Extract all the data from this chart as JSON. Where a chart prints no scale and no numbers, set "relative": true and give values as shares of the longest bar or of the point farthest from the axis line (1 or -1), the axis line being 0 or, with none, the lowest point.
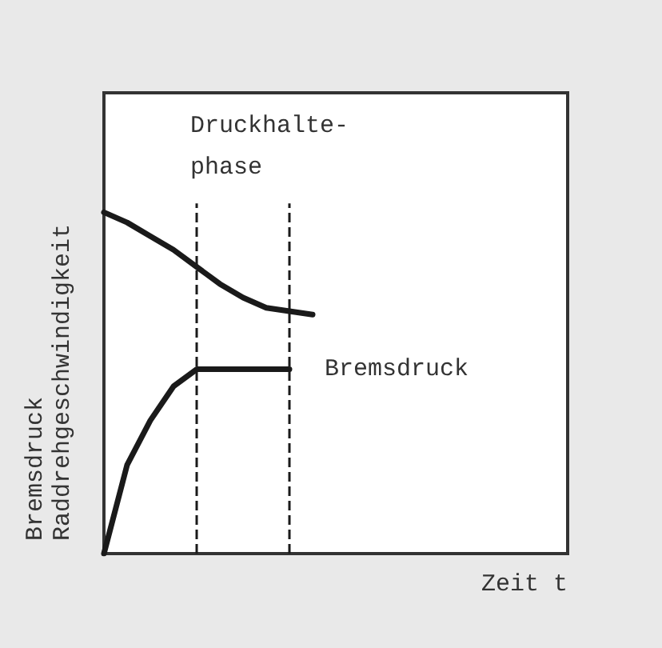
{
  "chart_data": {
    "type": "line",
    "relative": true,
    "xlabel": "Zeit t",
    "ylabel": "Bremsdruck\nRaddrehgeschwindigkeit",
    "grid": false,
    "legend": false,
    "marker": "none",
    "line_style": "solid",
    "categories": [
      null,
      null,
      null,
      null,
      null,
      null,
      null,
      null,
      null,
      null,
      null,
      null,
      null,
      null,
      null,
      null,
      null,
      null,
      null,
      null,
      null
    ],
    "series": [
      {
        "color": "#1a1a1a",
        "values": [
          1,
          0.97,
          0.93,
          0.89,
          0.84,
          0.79,
          0.75,
          0.72,
          0.71,
          0.7,
          null,
          null,
          null,
          null,
          null,
          null,
          null,
          null,
          null,
          null,
          null
        ]
      },
      {
        "name": "Bremsdruck",
        "color": "#1a1a1a",
        "values": [
          0,
          0.26,
          0.39,
          0.49,
          0.54,
          0.54,
          0.54,
          0.54,
          0.54,
          null,
          null,
          null,
          null,
          null,
          null,
          null,
          null,
          null,
          null,
          null,
          null
        ]
      }
    ],
    "annotations": [
      "Druckhalte-\nphase"
    ]
  }
}
